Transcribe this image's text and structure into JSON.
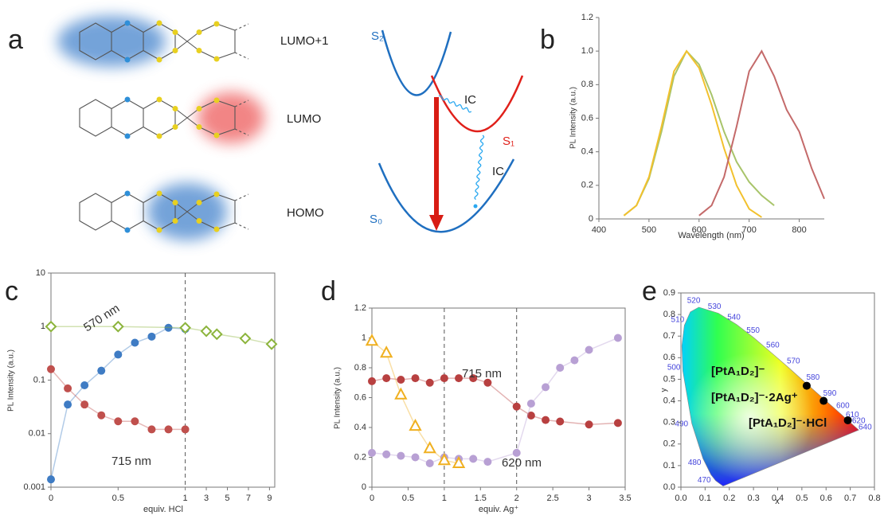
{
  "diagram": {
    "panel_label": "a",
    "orbitals": [
      "LUMO+1",
      "LUMO",
      "HOMO"
    ],
    "states": [
      "S₂",
      "S₁",
      "S₀"
    ],
    "transitions": [
      "IC",
      "IC"
    ]
  },
  "chart_data": [
    {
      "type": "line",
      "panel_label": "b",
      "xlabel": "Wavelength (nm)",
      "ylabel": "PL Intensity (a.u.)",
      "x": [
        400,
        425,
        450,
        475,
        500,
        525,
        550,
        575,
        600,
        625,
        650,
        675,
        700,
        725,
        750,
        775,
        800,
        825,
        850
      ],
      "xlim": [
        400,
        850
      ],
      "xticks": [
        400,
        500,
        600,
        700,
        800
      ],
      "ylim": [
        0,
        1.2
      ],
      "yticks": [
        0,
        0.2,
        0.4,
        0.6,
        0.8,
        {
          "value": 1,
          "label": "1.0"
        },
        1.2
      ],
      "series": [
        {
          "color": "#a8c46a",
          "values": [
            null,
            null,
            0.02,
            0.08,
            0.24,
            0.52,
            0.85,
            1.0,
            0.92,
            0.74,
            0.52,
            0.34,
            0.22,
            0.14,
            0.08,
            null,
            null,
            null,
            null
          ]
        },
        {
          "color": "#f2c12e",
          "values": [
            null,
            null,
            0.02,
            0.08,
            0.25,
            0.55,
            0.88,
            1.0,
            0.9,
            0.68,
            0.42,
            0.2,
            0.06,
            0.01,
            null,
            null,
            null,
            null,
            null
          ]
        },
        {
          "color": "#c46a6a",
          "values": [
            null,
            null,
            null,
            null,
            null,
            null,
            null,
            null,
            0.02,
            0.08,
            0.25,
            0.55,
            0.88,
            1.0,
            0.85,
            0.65,
            0.52,
            0.3,
            0.12
          ]
        }
      ]
    },
    {
      "type": "line",
      "panel_label": "c",
      "xlabel": "equiv. HCl",
      "ylabel": "PL Intensity (a.u.)",
      "xlim": [
        0,
        9.5
      ],
      "xscale": "broken",
      "xticks": [
        0,
        0.5,
        1,
        3,
        5,
        7,
        9
      ],
      "ylim": [
        0.001,
        10
      ],
      "ylog": true,
      "yticks": [
        0.001,
        0.01,
        0.1,
        1,
        10
      ],
      "vlines": [
        1
      ],
      "box": true,
      "annotations": [
        "570 nm",
        "715 nm"
      ],
      "series": [
        {
          "color": "#3f7cc4",
          "marker": "circle",
          "x": [
            0,
            0.125,
            0.25,
            0.375,
            0.5,
            0.625,
            0.75,
            0.875,
            1
          ],
          "values": [
            0.0014,
            0.035,
            0.08,
            0.15,
            0.3,
            0.5,
            0.65,
            0.95,
            0.9
          ]
        },
        {
          "color": "#c0504d",
          "marker": "circle",
          "x": [
            0,
            0.125,
            0.25,
            0.375,
            0.5,
            0.625,
            0.75,
            0.875,
            1
          ],
          "values": [
            0.16,
            0.07,
            0.035,
            0.022,
            0.017,
            0.017,
            0.012,
            0.012,
            0.012
          ]
        },
        {
          "color": "#8cb43c",
          "marker": "diamond",
          "filled": false,
          "x": [
            0,
            0.5,
            1,
            3,
            4,
            6.7,
            9.2
          ],
          "values": [
            1,
            1,
            0.95,
            0.82,
            0.72,
            0.6,
            0.47
          ]
        }
      ]
    },
    {
      "type": "line",
      "panel_label": "d",
      "xlabel": "equiv. Ag⁺",
      "ylabel": "PL Intensity (a.u.)",
      "xlim": [
        0,
        3.5
      ],
      "xticks": [
        0,
        0.5,
        1,
        1.5,
        2,
        2.5,
        3,
        3.5
      ],
      "ylim": [
        0,
        1.2
      ],
      "yticks": [
        0,
        0.2,
        0.4,
        0.6,
        0.8,
        1,
        1.2
      ],
      "vlines": [
        1,
        2
      ],
      "box": true,
      "annotations": [
        "715 nm",
        "620 nm"
      ],
      "series": [
        {
          "color": "#b84040",
          "marker": "circle",
          "x": [
            0,
            0.2,
            0.4,
            0.6,
            0.8,
            1,
            1.2,
            1.4,
            1.6,
            2,
            2.2,
            2.4,
            2.6,
            3,
            3.4
          ],
          "values": [
            0.71,
            0.73,
            0.72,
            0.73,
            0.7,
            0.73,
            0.73,
            0.73,
            0.7,
            0.54,
            0.48,
            0.45,
            0.44,
            0.42,
            0.43
          ]
        },
        {
          "color": "#b8a0d4",
          "marker": "circle",
          "x": [
            0,
            0.2,
            0.4,
            0.6,
            0.8,
            1,
            1.2,
            1.4,
            1.6,
            2,
            2.2,
            2.4,
            2.6,
            2.8,
            3,
            3.4
          ],
          "values": [
            0.23,
            0.22,
            0.21,
            0.2,
            0.16,
            0.2,
            0.19,
            0.19,
            0.17,
            0.23,
            0.56,
            0.67,
            0.8,
            0.85,
            0.92,
            1.0
          ]
        },
        {
          "color": "#f0b020",
          "marker": "triangle",
          "filled": false,
          "x": [
            0,
            0.2,
            0.4,
            0.6,
            0.8,
            1,
            1.2
          ],
          "values": [
            0.98,
            0.9,
            0.62,
            0.41,
            0.26,
            0.18,
            0.16
          ]
        }
      ]
    },
    {
      "type": "scatter",
      "panel_label": "e",
      "xlabel": "x",
      "ylabel": "y",
      "xlim": [
        0,
        0.8
      ],
      "xticks": [
        {
          "value": 0,
          "label": "0.0"
        },
        0.1,
        0.2,
        0.3,
        0.4,
        0.5,
        0.6,
        0.7,
        0.8
      ],
      "ylim": [
        0,
        0.9
      ],
      "yticks": [
        {
          "value": 0,
          "label": "0.0"
        },
        0.1,
        0.2,
        0.3,
        0.4,
        0.5,
        0.6,
        0.7,
        0.8,
        0.9
      ],
      "box": true,
      "series": [
        {
          "color": "#000000",
          "x": [
            0.52,
            0.59,
            0.69
          ],
          "values": [
            0.47,
            0.4,
            0.31
          ]
        }
      ],
      "point_labels": [
        "[PtA₁D₂]⁻",
        "[PtA₁D₂]⁻·2Ag⁺",
        "[PtA₁D₂]⁻·HCl"
      ],
      "locus_labels": [
        470,
        480,
        490,
        500,
        510,
        520,
        530,
        540,
        550,
        560,
        570,
        580,
        590,
        600,
        610,
        620,
        640
      ]
    }
  ]
}
